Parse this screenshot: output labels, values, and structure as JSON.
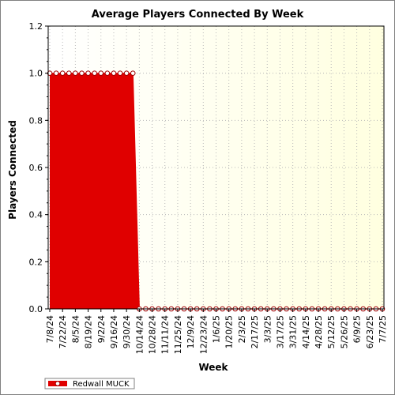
{
  "chart_data": {
    "type": "area",
    "title": "Average Players Connected By Week",
    "xlabel": "Week",
    "ylabel": "Players Connected",
    "ylim": [
      0,
      1.2
    ],
    "yticks": [
      "0.0",
      "0.2",
      "0.4",
      "0.6",
      "0.8",
      "1.0",
      "1.2"
    ],
    "x_labels": [
      "7/8/24",
      "7/22/24",
      "8/5/24",
      "8/19/24",
      "9/2/24",
      "9/16/24",
      "9/30/24",
      "10/14/24",
      "10/28/24",
      "11/11/24",
      "11/25/24",
      "12/9/24",
      "12/23/24",
      "1/6/25",
      "1/20/25",
      "2/3/25",
      "2/17/25",
      "3/3/25",
      "3/17/25",
      "3/31/25",
      "4/14/25",
      "4/28/25",
      "5/12/25",
      "5/26/25",
      "6/9/25",
      "6/23/25",
      "7/7/25"
    ],
    "x": [
      "7/8/24",
      "7/15/24",
      "7/22/24",
      "7/29/24",
      "8/5/24",
      "8/12/24",
      "8/19/24",
      "8/26/24",
      "9/2/24",
      "9/9/24",
      "9/16/24",
      "9/23/24",
      "9/30/24",
      "10/7/24",
      "10/14/24",
      "10/21/24",
      "10/28/24",
      "11/4/24",
      "11/11/24",
      "11/18/24",
      "11/25/24",
      "12/2/24",
      "12/9/24",
      "12/16/24",
      "12/23/24",
      "12/30/24",
      "1/6/25",
      "1/13/25",
      "1/20/25",
      "1/27/25",
      "2/3/25",
      "2/10/25",
      "2/17/25",
      "2/24/25",
      "3/3/25",
      "3/10/25",
      "3/17/25",
      "3/24/25",
      "3/31/25",
      "4/7/25",
      "4/14/25",
      "4/21/25",
      "4/28/25",
      "5/5/25",
      "5/12/25",
      "5/19/25",
      "5/26/25",
      "6/2/25",
      "6/9/25",
      "6/16/25",
      "6/23/25",
      "6/30/25",
      "7/7/25"
    ],
    "series": [
      {
        "name": "Redwall MUCK",
        "color": "#e00000",
        "marker_fill": "#ffffff",
        "marker_stroke": "#a00000",
        "values": [
          1,
          1,
          1,
          1,
          1,
          1,
          1,
          1,
          1,
          1,
          1,
          1,
          1,
          1,
          0,
          0,
          0,
          0,
          0,
          0,
          0,
          0,
          0,
          0,
          0,
          0,
          0,
          0,
          0,
          0,
          0,
          0,
          0,
          0,
          0,
          0,
          0,
          0,
          0,
          0,
          0,
          0,
          0,
          0,
          0,
          0,
          0,
          0,
          0,
          0,
          0,
          0,
          0
        ]
      }
    ],
    "grid": true,
    "plot_background": [
      "#ffffff",
      "#ffffe0"
    ],
    "legend": "bottom-left"
  }
}
